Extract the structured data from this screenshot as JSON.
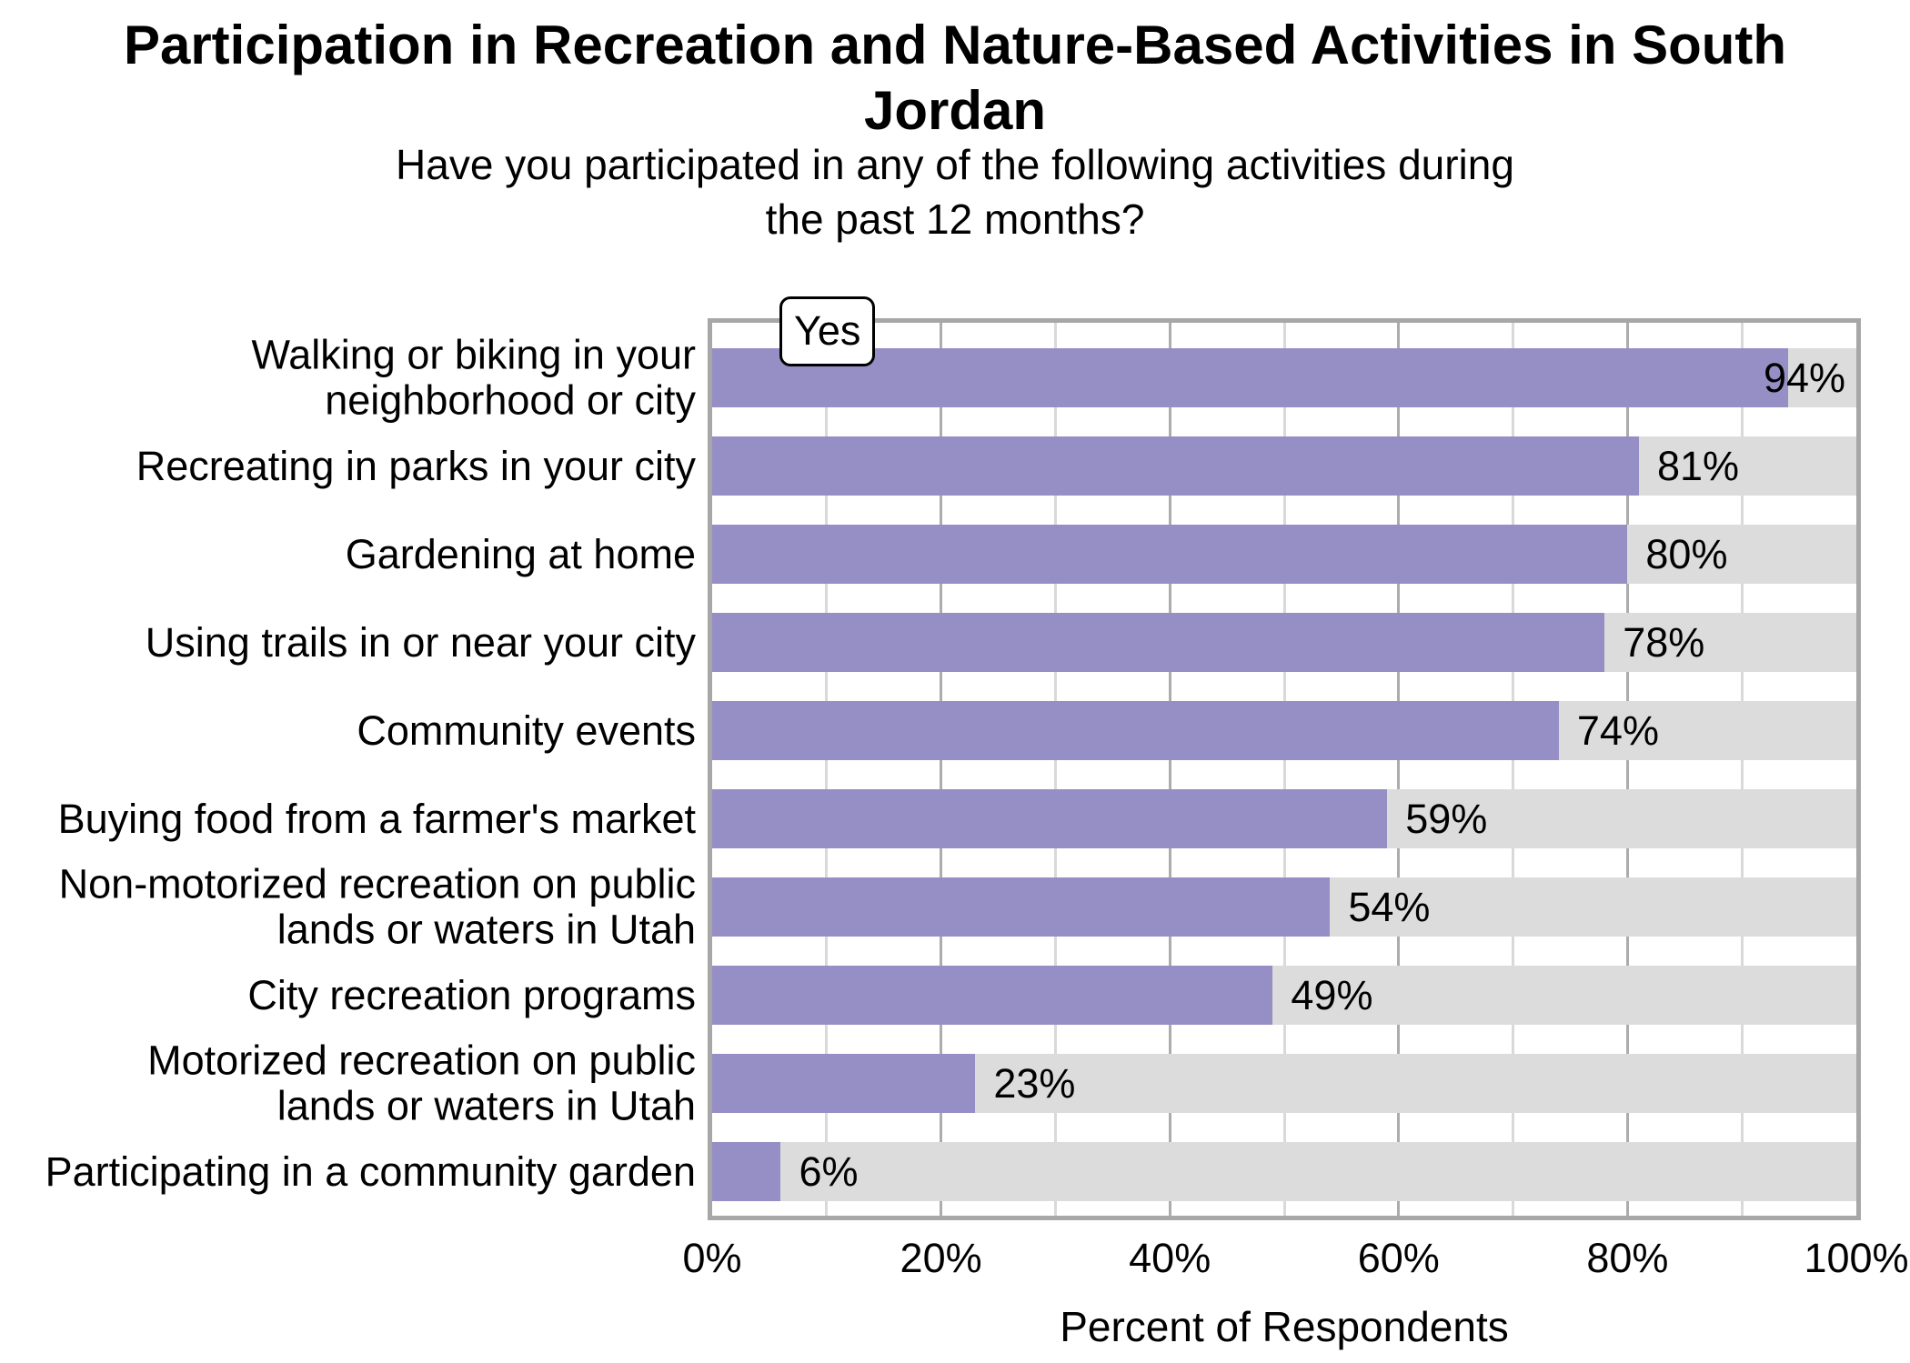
{
  "chart_data": {
    "type": "bar",
    "orientation": "horizontal",
    "title": "Participation in Recreation and Nature-Based Activities in South Jordan",
    "subtitle": "Have you participated in any of the following activities during the past 12 months?",
    "xlabel": "Percent of Respondents",
    "ylabel": "",
    "xlim": [
      0,
      100
    ],
    "grid": "major-and-minor-vertical",
    "legend": {
      "label": "Yes",
      "position": "top-left-inside"
    },
    "categories": [
      "Walking or biking in your neighborhood or city",
      "Recreating in parks in your city",
      "Gardening at home",
      "Using trails in or near your city",
      "Community events",
      "Buying food from a farmer's market",
      "Non-motorized recreation on public lands or waters in Utah",
      "City recreation programs",
      "Motorized recreation on public lands or waters in Utah",
      "Participating in a community garden"
    ],
    "category_lines": [
      [
        "Walking or biking in your",
        "neighborhood or city"
      ],
      [
        "Recreating in parks in your city"
      ],
      [
        "Gardening at home"
      ],
      [
        "Using trails in or near your city"
      ],
      [
        "Community events"
      ],
      [
        "Buying food from a farmer's market"
      ],
      [
        "Non-motorized recreation on public",
        "lands or waters in Utah"
      ],
      [
        "City recreation programs"
      ],
      [
        "Motorized recreation on public",
        "lands or waters in Utah"
      ],
      [
        "Participating in a community garden"
      ]
    ],
    "values": [
      94,
      81,
      80,
      78,
      74,
      59,
      54,
      49,
      23,
      6
    ],
    "value_labels": [
      "94%",
      "81%",
      "80%",
      "78%",
      "74%",
      "59%",
      "54%",
      "49%",
      "23%",
      "6%"
    ],
    "x_ticks": [
      "0%",
      "20%",
      "40%",
      "60%",
      "80%",
      "100%"
    ],
    "x_tick_values": [
      0,
      20,
      40,
      60,
      80,
      100
    ],
    "x_minor_tick_values": [
      10,
      30,
      50,
      70,
      90
    ],
    "colors": {
      "bar": "#968fc5",
      "bar_background": "#dcdcdc",
      "grid_major": "#acacac",
      "grid_minor": "#d9d9d9",
      "panel_border": "#a7a7a7",
      "text": "#000000",
      "legend_background": "#ffffff",
      "legend_border": "#000000"
    }
  }
}
